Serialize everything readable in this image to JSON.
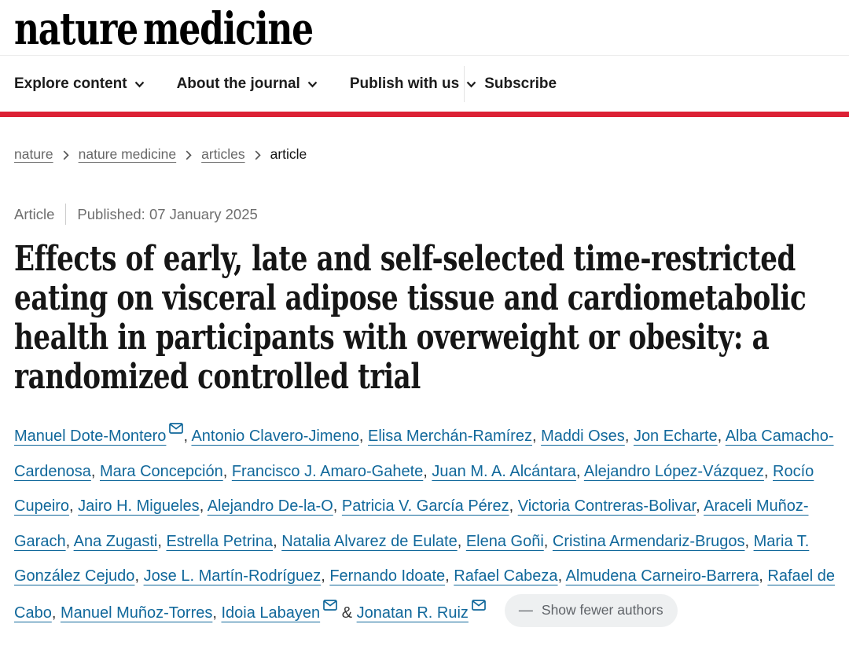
{
  "brand": {
    "logo_text": "nature medicine"
  },
  "nav": {
    "items": [
      {
        "label": "Explore content",
        "dropdown": true
      },
      {
        "label": "About the journal",
        "dropdown": true
      },
      {
        "label": "Publish with us",
        "dropdown": true
      }
    ],
    "subscribe_label": "Subscribe"
  },
  "breadcrumbs": [
    {
      "label": "nature",
      "is_link": true
    },
    {
      "label": "nature medicine",
      "is_link": true
    },
    {
      "label": "articles",
      "is_link": true
    },
    {
      "label": "article",
      "is_link": false
    }
  ],
  "article_meta": {
    "type_label": "Article",
    "published_label": "Published: 07 January 2025"
  },
  "title_lines": [
    "Effects of early, late and self-selected time-restricted",
    "eating on visceral adipose tissue and cardiometabolic",
    "health in participants with overweight or obesity: a",
    "randomized controlled trial"
  ],
  "title_full": "Effects of early, late and self-selected time-restricted eating on visceral adipose tissue and cardiometabolic health in participants with overweight or obesity: a randomized controlled trial",
  "authors": {
    "list": [
      {
        "name": "Manuel Dote-Montero",
        "email": true
      },
      {
        "name": "Antonio Clavero-Jimeno",
        "email": false
      },
      {
        "name": "Elisa Merchán-Ramírez",
        "email": false
      },
      {
        "name": "Maddi Oses",
        "email": false
      },
      {
        "name": "Jon Echarte",
        "email": false
      },
      {
        "name": "Alba Camacho-Cardenosa",
        "email": false
      },
      {
        "name": "Mara Concepción",
        "email": false
      },
      {
        "name": "Francisco J. Amaro-Gahete",
        "email": false
      },
      {
        "name": "Juan M. A. Alcántara",
        "email": false
      },
      {
        "name": "Alejandro López-Vázquez",
        "email": false
      },
      {
        "name": "Rocío Cupeiro",
        "email": false
      },
      {
        "name": "Jairo H. Migueles",
        "email": false
      },
      {
        "name": "Alejandro De-la-O",
        "email": false
      },
      {
        "name": "Patricia V. García Pérez",
        "email": false
      },
      {
        "name": "Victoria Contreras-Bolivar",
        "email": false
      },
      {
        "name": "Araceli Muñoz-Garach",
        "email": false
      },
      {
        "name": "Ana Zugasti",
        "email": false
      },
      {
        "name": "Estrella Petrina",
        "email": false
      },
      {
        "name": "Natalia Alvarez de Eulate",
        "email": false
      },
      {
        "name": "Elena Goñi",
        "email": false
      },
      {
        "name": "Cristina Armendariz-Brugos",
        "email": false
      },
      {
        "name": "Maria T. González Cejudo",
        "email": false
      },
      {
        "name": "Jose L. Martín-Rodríguez",
        "email": false
      },
      {
        "name": "Fernando Idoate",
        "email": false
      },
      {
        "name": "Rafael Cabeza",
        "email": false
      },
      {
        "name": "Almudena Carneiro-Barrera",
        "email": false
      },
      {
        "name": "Rafael de Cabo",
        "email": false
      },
      {
        "name": "Manuel Muñoz-Torres",
        "email": false
      },
      {
        "name": "Idoia Labayen",
        "email": true
      },
      {
        "name": "Jonatan R. Ruiz",
        "email": true
      }
    ],
    "separator": ", ",
    "last_separator": " & ",
    "show_fewer": {
      "icon": "—",
      "label": "Show fewer authors"
    }
  },
  "colors": {
    "accent_red": "#dc2135",
    "link_blue": "#11689b",
    "breadcrumb_gray": "#666666",
    "pill_bg": "#eef0f1"
  }
}
